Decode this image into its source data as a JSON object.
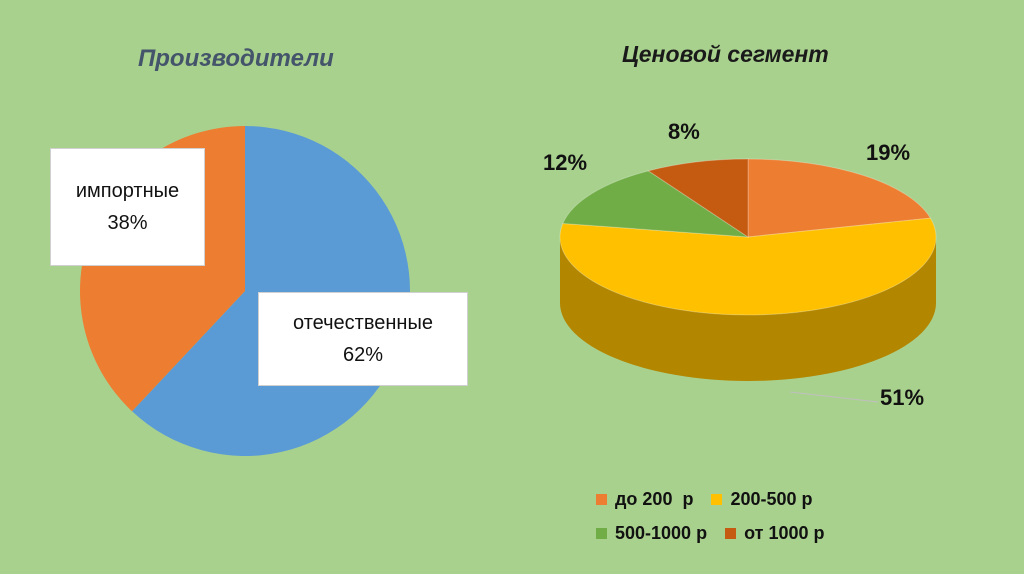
{
  "chart_data": [
    {
      "type": "pie",
      "title": "Производители",
      "slices": [
        {
          "name": "импортные",
          "value": 38,
          "label_text": "38%",
          "color": "#ed7d31"
        },
        {
          "name": "отечественные",
          "value": 62,
          "label_text": "62%",
          "color": "#5b9bd5"
        }
      ]
    },
    {
      "type": "pie",
      "title": "Ценовой сегмент",
      "legend_position": "bottom",
      "slices": [
        {
          "name": "до 200  р",
          "value": 19,
          "label_text": "19%",
          "color": "#ed7d31"
        },
        {
          "name": "200-500 р",
          "value": 51,
          "label_text": "51%",
          "color": "#ffc000"
        },
        {
          "name": "500-1000 р",
          "value": 12,
          "label_text": "12%",
          "color": "#70ad47"
        },
        {
          "name": "от 1000 р",
          "value": 8,
          "label_text": "8%",
          "color": "#c55a11"
        }
      ]
    }
  ]
}
